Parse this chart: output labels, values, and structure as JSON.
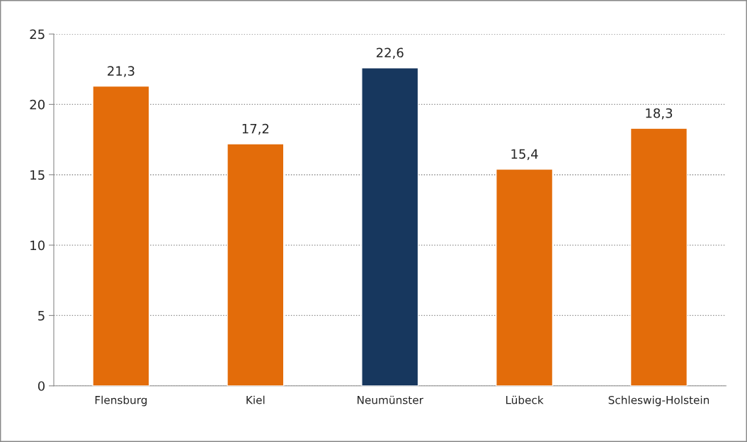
{
  "chart_data": {
    "type": "bar",
    "categories": [
      "Flensburg",
      "Kiel",
      "Neumünster",
      "Lübeck",
      "Schleswig-Holstein"
    ],
    "values": [
      21.3,
      17.2,
      22.6,
      15.4,
      18.3
    ],
    "colors": [
      "#e36c0a",
      "#e36c0a",
      "#17375e",
      "#e36c0a",
      "#e36c0a"
    ],
    "value_labels": [
      "21,3",
      "17,2",
      "22,6",
      "15,4",
      "18,3"
    ],
    "ylim": [
      0,
      25
    ],
    "yticks": [
      0,
      5,
      10,
      15,
      20,
      25
    ],
    "grid": "y",
    "legend": false
  }
}
